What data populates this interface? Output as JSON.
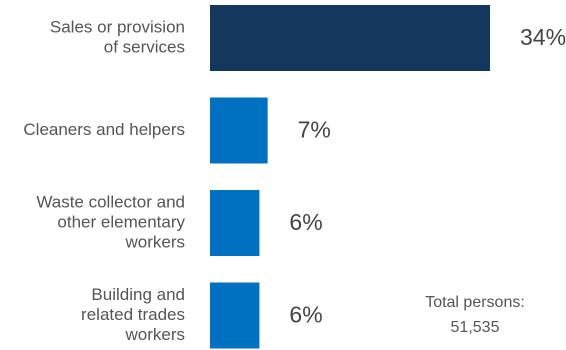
{
  "chart_data": {
    "type": "barh",
    "categories": [
      [
        "Sales or provision",
        "of services"
      ],
      [
        "Cleaners and helpers"
      ],
      [
        "Waste collector and",
        "other elementary",
        "workers"
      ],
      [
        "Building and",
        "related trades",
        "workers"
      ]
    ],
    "values": [
      34,
      7,
      6,
      6
    ],
    "value_labels": [
      "34%",
      "7%",
      "6%",
      "6%"
    ],
    "colors": [
      "#14375e",
      "#0070c0",
      "#0070c0",
      "#0070c0"
    ],
    "annotation": [
      "Total persons:",
      "51,535"
    ]
  }
}
